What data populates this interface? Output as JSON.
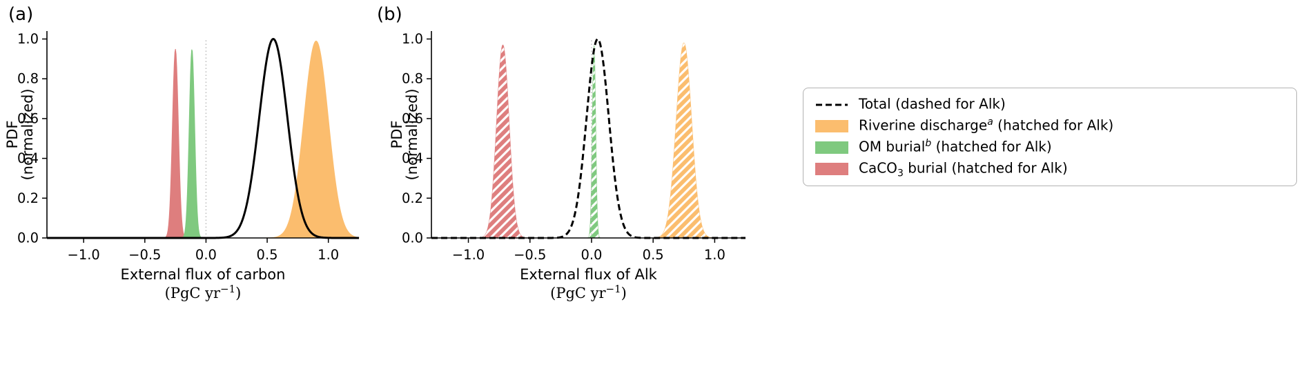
{
  "figure": {
    "panel_a_label": "(a)",
    "panel_b_label": "(b)"
  },
  "legend": {
    "items": [
      {
        "type": "dashed-line",
        "color": "#000000",
        "pre": "Total (dashed for Alk)",
        "sup": "",
        "sub": "",
        "post": ""
      },
      {
        "type": "patch",
        "color": "#FBBD6E",
        "pre": "Riverine discharge",
        "sup": "a",
        "sub": "",
        "post": " (hatched for Alk)"
      },
      {
        "type": "patch",
        "color": "#7FC97F",
        "pre": "OM burial",
        "sup": "b",
        "sub": "",
        "post": " (hatched for Alk)"
      },
      {
        "type": "patch",
        "color": "#DE7E7E",
        "pre": "CaCO",
        "sup": "",
        "sub": "3",
        "post": " burial (hatched for Alk)"
      }
    ]
  },
  "chart_data": [
    {
      "type": "area",
      "panel": "a",
      "xlabel": "External flux of carbon",
      "x_unit_pre": "(PgC yr",
      "x_unit_sup": "−1",
      "x_unit_post": ")",
      "ylabel_lines": [
        "PDF",
        "(normalized)"
      ],
      "xlim": [
        -1.3,
        1.25
      ],
      "ylim": [
        0,
        1.04
      ],
      "x_ticks": [
        -1.0,
        -0.5,
        0.0,
        0.5,
        1.0
      ],
      "x_tick_labels": [
        "−1.0",
        "−0.5",
        "0.0",
        "0.5",
        "1.0"
      ],
      "y_ticks": [
        0.0,
        0.2,
        0.4,
        0.6,
        0.8,
        1.0
      ],
      "y_tick_labels": [
        "0.0",
        "0.2",
        "0.4",
        "0.6",
        "0.8",
        "1.0"
      ],
      "zero_line_x": 0.0,
      "grid": false,
      "series": [
        {
          "name": "CaCO3 burial",
          "style": "fill",
          "hatched": false,
          "color": "#DE7E7E",
          "mean": -0.25,
          "sd": 0.024,
          "peak": 0.95
        },
        {
          "name": "OM burial",
          "style": "fill",
          "hatched": false,
          "color": "#7FC97F",
          "mean": -0.115,
          "sd": 0.022,
          "peak": 0.95
        },
        {
          "name": "Riverine discharge",
          "style": "fill",
          "hatched": false,
          "color": "#FBBD6E",
          "mean": 0.9,
          "sd": 0.1,
          "peak": 0.99
        },
        {
          "name": "Total",
          "style": "line",
          "dashed": false,
          "color": "#000000",
          "mean": 0.55,
          "sd": 0.115,
          "peak": 1.0
        }
      ]
    },
    {
      "type": "area",
      "panel": "b",
      "xlabel": "External flux of Alk",
      "x_unit_pre": "(PgC yr",
      "x_unit_sup": "−1",
      "x_unit_post": ")",
      "ylabel_lines": [
        "PDF",
        "(normalized)"
      ],
      "xlim": [
        -1.3,
        1.25
      ],
      "ylim": [
        0,
        1.04
      ],
      "x_ticks": [
        -1.0,
        -0.5,
        0.0,
        0.5,
        1.0
      ],
      "x_tick_labels": [
        "−1.0",
        "−0.5",
        "0.0",
        "0.5",
        "1.0"
      ],
      "y_ticks": [
        0.0,
        0.2,
        0.4,
        0.6,
        0.8,
        1.0
      ],
      "y_tick_labels": [
        "0.0",
        "0.2",
        "0.4",
        "0.6",
        "0.8",
        "1.0"
      ],
      "zero_line_x": 0.0,
      "grid": false,
      "series": [
        {
          "name": "CaCO3 burial",
          "style": "fill",
          "hatched": true,
          "color": "#DE7E7E",
          "mean": -0.72,
          "sd": 0.05,
          "peak": 0.97
        },
        {
          "name": "OM burial",
          "style": "fill",
          "hatched": true,
          "color": "#7FC97F",
          "mean": 0.02,
          "sd": 0.013,
          "peak": 0.97
        },
        {
          "name": "Riverine discharge",
          "style": "fill",
          "hatched": true,
          "color": "#FBBD6E",
          "mean": 0.75,
          "sd": 0.062,
          "peak": 0.98
        },
        {
          "name": "Total",
          "style": "line",
          "dashed": true,
          "color": "#000000",
          "mean": 0.05,
          "sd": 0.09,
          "peak": 1.0
        }
      ]
    }
  ]
}
